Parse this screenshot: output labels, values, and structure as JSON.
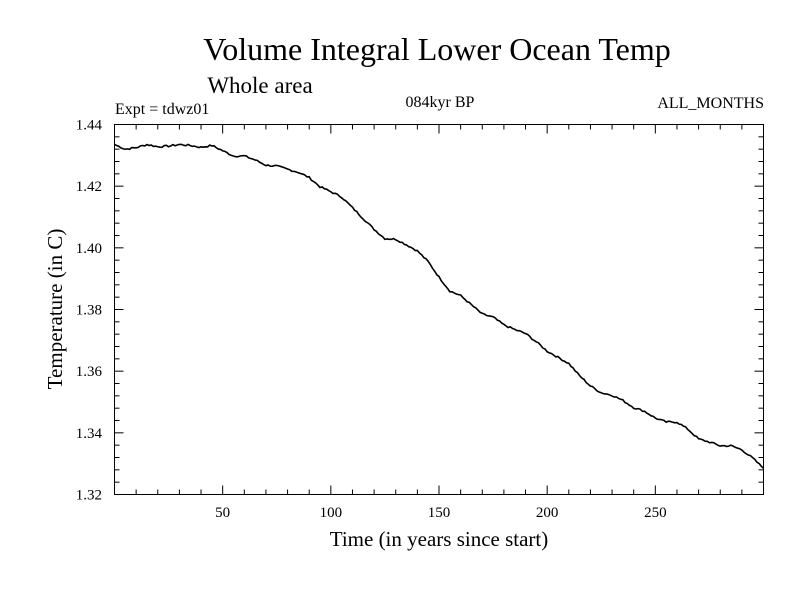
{
  "chart_data": {
    "type": "line",
    "title": "Volume Integral Lower Ocean Temp",
    "subtitle": "Whole area",
    "experiment_label": "Expt = tdwz01",
    "period_label": "084kyr BP",
    "months_label": "ALL_MONTHS",
    "xlabel": "Time (in years since start)",
    "ylabel": "Temperature (in C)",
    "xlim": [
      0,
      300
    ],
    "ylim": [
      1.32,
      1.44
    ],
    "x_ticks": [
      50,
      100,
      150,
      200,
      250
    ],
    "x_tick_labels": [
      "50",
      "100",
      "150",
      "200",
      "250"
    ],
    "y_ticks": [
      1.32,
      1.34,
      1.36,
      1.38,
      1.4,
      1.42,
      1.44
    ],
    "y_tick_labels": [
      "1.32",
      "1.34",
      "1.36",
      "1.38",
      "1.40",
      "1.42",
      "1.44"
    ],
    "grid": false,
    "series": [
      {
        "name": "Volume Integral Lower Ocean Temp",
        "x": [
          0,
          5,
          10,
          15,
          20,
          25,
          30,
          35,
          40,
          45,
          50,
          55,
          60,
          65,
          70,
          75,
          80,
          85,
          90,
          95,
          100,
          105,
          110,
          115,
          120,
          125,
          130,
          135,
          140,
          145,
          150,
          155,
          160,
          165,
          170,
          175,
          180,
          185,
          190,
          195,
          200,
          205,
          210,
          215,
          220,
          225,
          230,
          235,
          240,
          245,
          250,
          255,
          260,
          265,
          270,
          275,
          280,
          285,
          290,
          295,
          300
        ],
        "values": [
          1.4335,
          1.432,
          1.4325,
          1.4335,
          1.4328,
          1.433,
          1.4335,
          1.4332,
          1.4326,
          1.4332,
          1.4315,
          1.4298,
          1.4298,
          1.4285,
          1.4268,
          1.4265,
          1.4255,
          1.4245,
          1.4228,
          1.4198,
          1.4182,
          1.4165,
          1.413,
          1.4095,
          1.406,
          1.403,
          1.4028,
          1.401,
          1.399,
          1.3955,
          1.3905,
          1.386,
          1.3845,
          1.3815,
          1.3785,
          1.3775,
          1.375,
          1.3735,
          1.3722,
          1.3695,
          1.3665,
          1.3645,
          1.3625,
          1.3585,
          1.3552,
          1.353,
          1.3522,
          1.3505,
          1.3482,
          1.347,
          1.3448,
          1.3435,
          1.3435,
          1.3412,
          1.338,
          1.337,
          1.3358,
          1.3358,
          1.3345,
          1.3318,
          1.3285
        ]
      }
    ]
  }
}
